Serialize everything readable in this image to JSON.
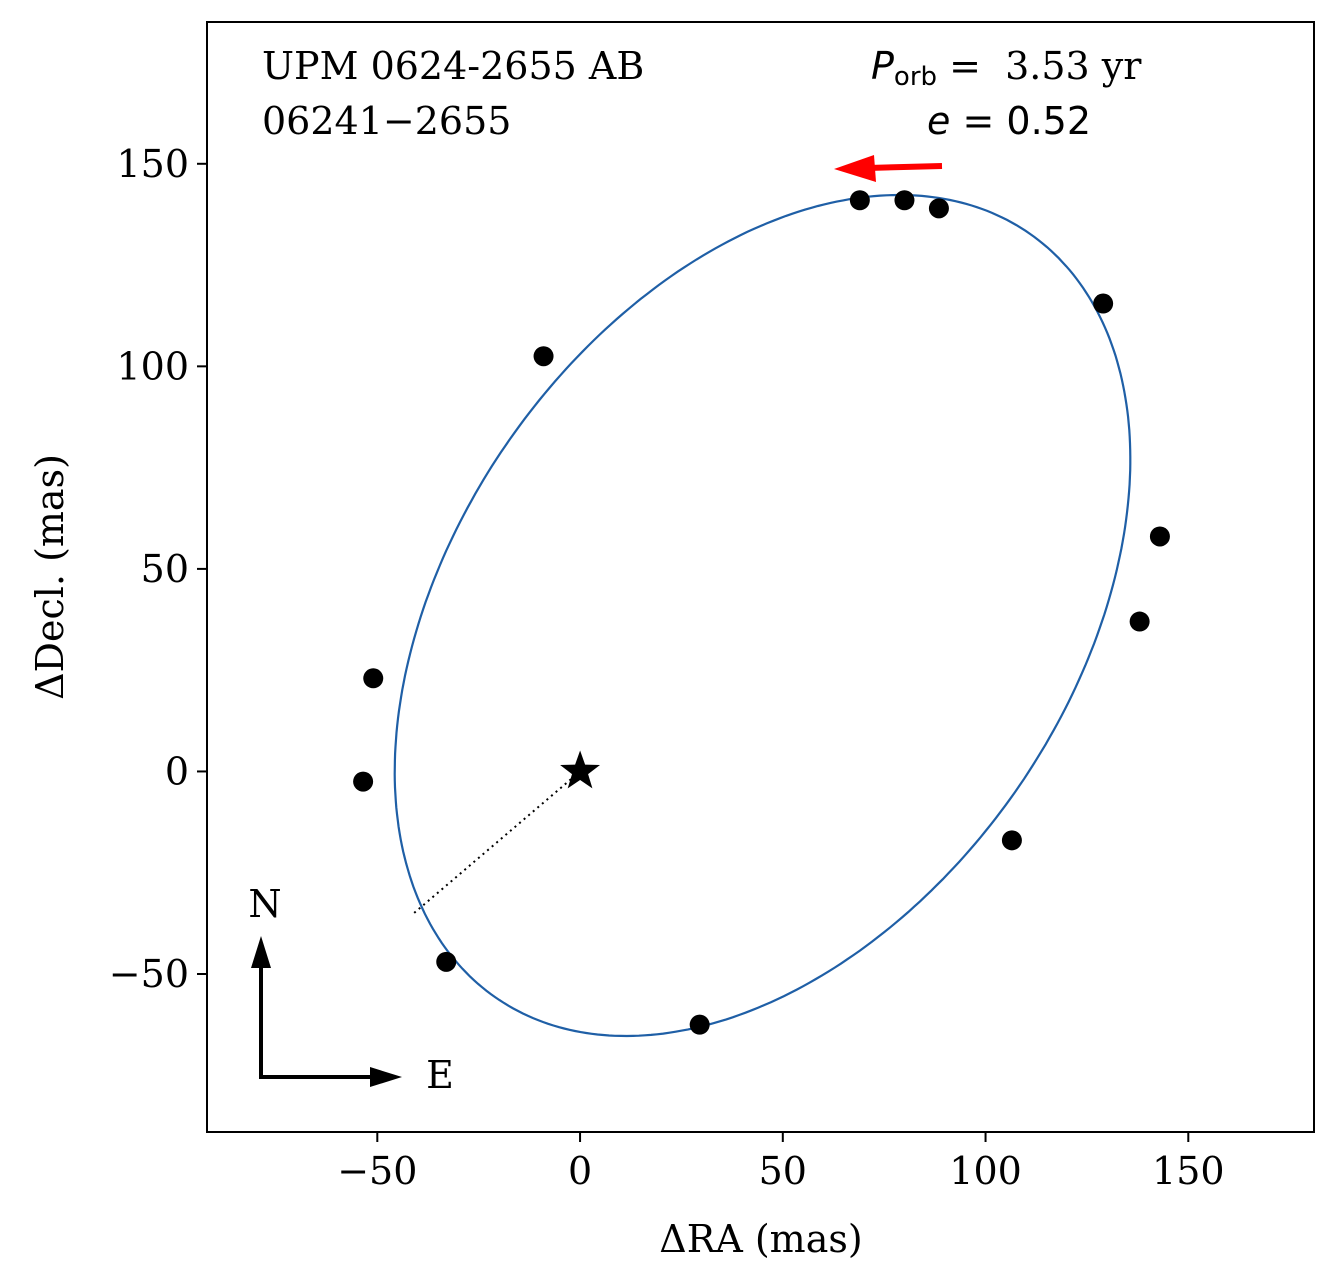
{
  "chart_data": {
    "type": "scatter",
    "title": "",
    "xlabel": "ΔRA  (mas)",
    "ylabel": "ΔDecl.  (mas)",
    "xlim": [
      -92,
      181
    ],
    "ylim": [
      -89,
      185
    ],
    "xticks": [
      -50,
      0,
      50,
      100,
      150
    ],
    "yticks": [
      -50,
      0,
      50,
      100,
      150
    ],
    "xtick_labels": [
      "−50",
      "0",
      "50",
      "100",
      "150"
    ],
    "ytick_labels": [
      "−50",
      "0",
      "50",
      "100",
      "150"
    ],
    "grid": false,
    "system_name": "UPM 0624-2655 AB",
    "wds_id": "06241−2655",
    "period_label": "P",
    "period_subscript": "orb",
    "period_value": " =  3.53 yr",
    "ecc_label": "e",
    "ecc_value": " = 0.52",
    "orbit_color": "#1f5fa6",
    "direction_arrow_color": "#ff0000",
    "compass": {
      "north_label": "N",
      "east_label": "E"
    },
    "primary_position": {
      "x": 0,
      "y": 0
    },
    "periastron_point": {
      "x": -41,
      "y": -35
    },
    "orbit_ellipse": {
      "center": [
        45,
        38.5
      ],
      "semi_major": 115,
      "semi_minor": 76,
      "angle_deg": 55
    },
    "series": [
      {
        "x": [
          69,
          80,
          88.5,
          129,
          143,
          138,
          106.5,
          29.5,
          -33,
          -53.5,
          -51,
          -9
        ],
        "y": [
          141,
          141,
          139,
          115.5,
          58,
          37,
          -17,
          -62.5,
          -47,
          -2.5,
          23,
          102.5
        ]
      }
    ]
  }
}
